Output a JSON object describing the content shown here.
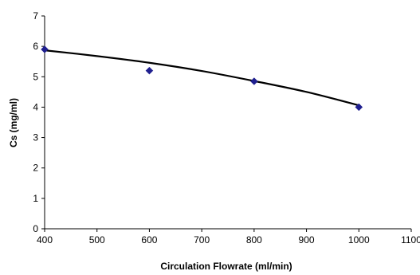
{
  "chart_data": {
    "type": "scatter",
    "title": "",
    "xlabel": "Circulation Flowrate (ml/min)",
    "ylabel": "Cs (mg/ml)",
    "xlim": [
      400,
      1100
    ],
    "ylim": [
      0,
      7
    ],
    "xticks": [
      "400",
      "500",
      "600",
      "700",
      "800",
      "900",
      "1000",
      "1100"
    ],
    "yticks": [
      "0",
      "1",
      "2",
      "3",
      "4",
      "5",
      "6",
      "7"
    ],
    "grid": false,
    "legend": "none",
    "series": [
      {
        "values": [
          {
            "x": 400,
            "y": 5.9
          },
          {
            "x": 600,
            "y": 5.2
          },
          {
            "x": 800,
            "y": 4.85
          },
          {
            "x": 1000,
            "y": 4.0
          }
        ],
        "marker": "diamond",
        "color": "#1f1f8f"
      }
    ],
    "trendline": {
      "type": "polynomial",
      "points": [
        {
          "x": 400,
          "y": 5.87
        },
        {
          "x": 500,
          "y": 5.68
        },
        {
          "x": 600,
          "y": 5.46
        },
        {
          "x": 700,
          "y": 5.19
        },
        {
          "x": 800,
          "y": 4.86
        },
        {
          "x": 900,
          "y": 4.5
        },
        {
          "x": 1000,
          "y": 4.06
        }
      ],
      "color": "#000000"
    },
    "axis_color": "#000000"
  }
}
